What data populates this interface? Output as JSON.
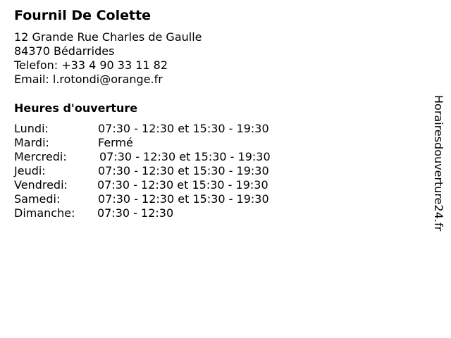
{
  "business": {
    "name": "Fournil De Colette",
    "street": "12 Grande Rue Charles de Gaulle",
    "city": "84370 Bédarrides",
    "phone": "Telefon: +33 4 90 33 11 82",
    "email": "Email: l.rotondi@orange.fr"
  },
  "hours": {
    "heading": "Heures d'ouverture",
    "days": [
      {
        "day": "Lundi:",
        "time": "07:30 - 12:30 et 15:30 - 19:30"
      },
      {
        "day": "Mardi:",
        "time": "Fermé"
      },
      {
        "day": "Mercredi:",
        "time": "07:30 - 12:30 et 15:30 - 19:30"
      },
      {
        "day": "Jeudi:",
        "time": "07:30 - 12:30 et 15:30 - 19:30"
      },
      {
        "day": "Vendredi:",
        "time": "07:30 - 12:30 et 15:30 - 19:30"
      },
      {
        "day": "Samedi:",
        "time": "07:30 - 12:30 et 15:30 - 19:30"
      },
      {
        "day": "Dimanche:",
        "time": "07:30 - 12:30"
      }
    ]
  },
  "watermark": "Horairesdouverture24.fr"
}
